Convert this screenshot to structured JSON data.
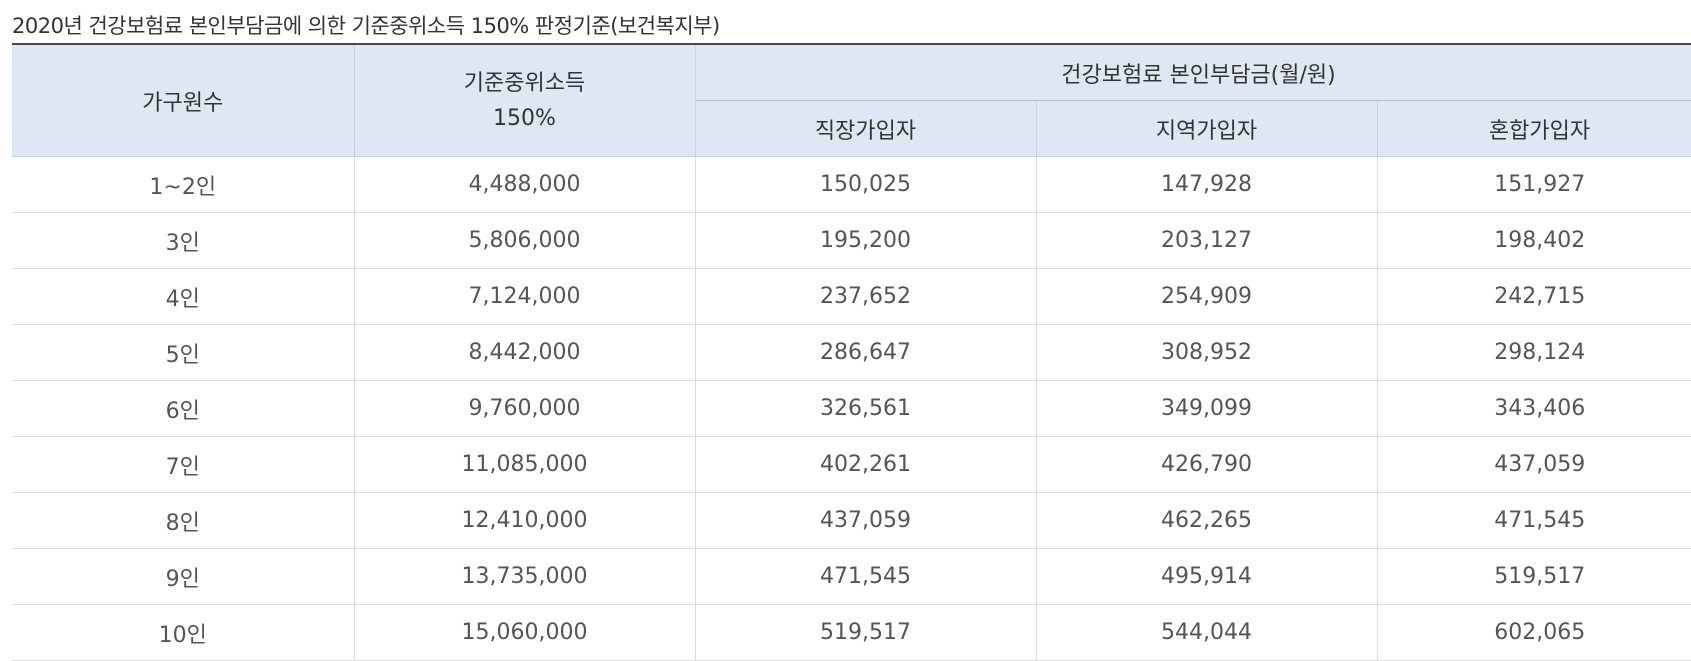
{
  "title": "2020년 건강보험료 본인부담금에 의한 기준중위소득 150% 판정기준(보건복지부)",
  "header": {
    "household": "가구원수",
    "median_income_line1": "기준중위소득",
    "median_income_line2": "150%",
    "premium_group": "건강보험료 본인부담금(월/원)",
    "employee": "직장가입자",
    "regional": "지역가입자",
    "mixed": "혼합가입자"
  },
  "rows": [
    {
      "household": "1~2인",
      "income": "4,488,000",
      "employee": "150,025",
      "regional": "147,928",
      "mixed": "151,927"
    },
    {
      "household": "3인",
      "income": "5,806,000",
      "employee": "195,200",
      "regional": "203,127",
      "mixed": "198,402"
    },
    {
      "household": "4인",
      "income": "7,124,000",
      "employee": "237,652",
      "regional": "254,909",
      "mixed": "242,715"
    },
    {
      "household": "5인",
      "income": "8,442,000",
      "employee": "286,647",
      "regional": "308,952",
      "mixed": "298,124"
    },
    {
      "household": "6인",
      "income": "9,760,000",
      "employee": "326,561",
      "regional": "349,099",
      "mixed": "343,406"
    },
    {
      "household": "7인",
      "income": "11,085,000",
      "employee": "402,261",
      "regional": "426,790",
      "mixed": "437,059"
    },
    {
      "household": "8인",
      "income": "12,410,000",
      "employee": "437,059",
      "regional": "462,265",
      "mixed": "471,545"
    },
    {
      "household": "9인",
      "income": "13,735,000",
      "employee": "471,545",
      "regional": "495,914",
      "mixed": "519,517"
    },
    {
      "household": "10인",
      "income": "15,060,000",
      "employee": "519,517",
      "regional": "544,044",
      "mixed": "602,065"
    }
  ]
}
